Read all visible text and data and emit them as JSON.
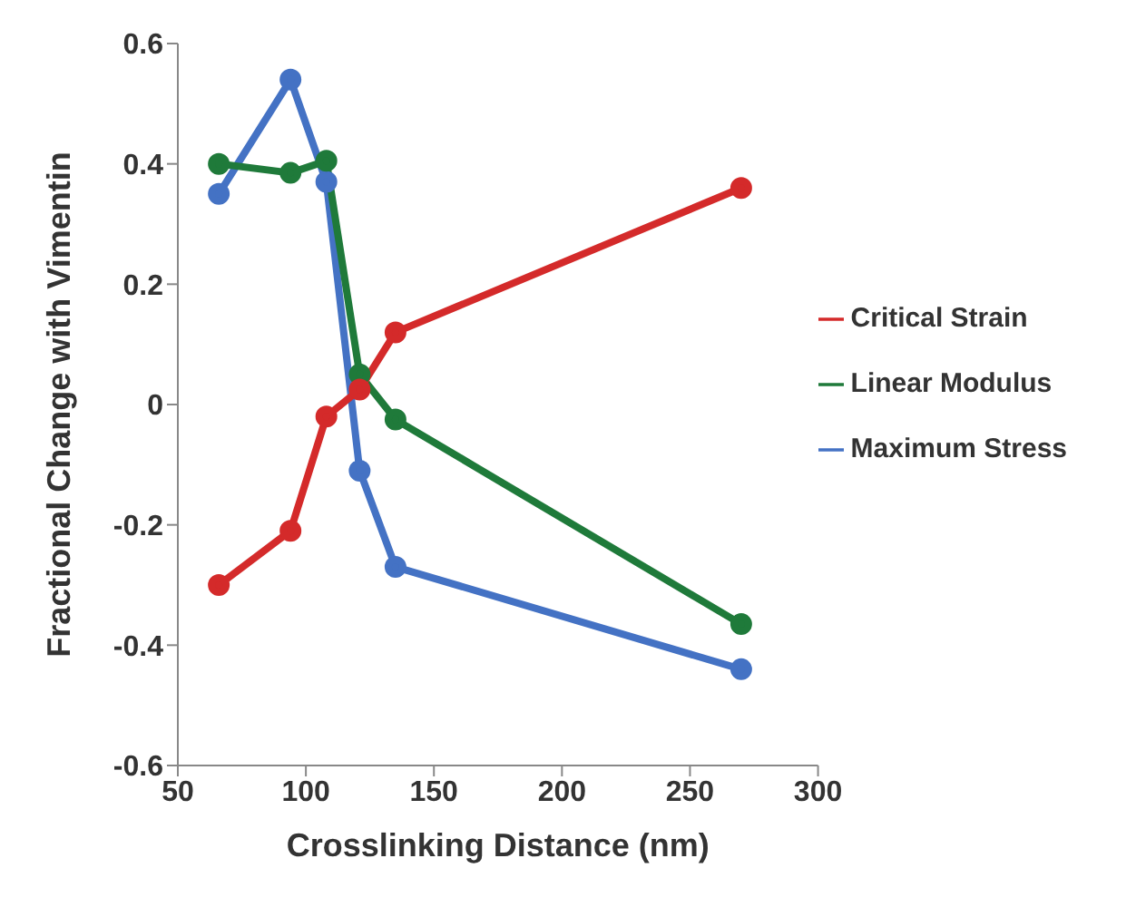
{
  "chart_data": {
    "type": "line",
    "xlabel": "Crosslinking Distance (nm)",
    "ylabel": "Fractional Change with Vimentin",
    "x": [
      66,
      94,
      108,
      121,
      135,
      270
    ],
    "series": [
      {
        "name": "Maximum Stress",
        "color": "#4472c4",
        "values": [
          0.35,
          0.54,
          0.37,
          -0.11,
          -0.27,
          -0.44
        ]
      },
      {
        "name": "Linear Modulus",
        "color": "#1f7a3a",
        "values": [
          0.4,
          0.385,
          0.405,
          0.05,
          -0.025,
          -0.365
        ]
      },
      {
        "name": "Critical Strain",
        "color": "#d42a2a",
        "values": [
          -0.3,
          -0.21,
          -0.02,
          0.025,
          0.12,
          0.36
        ]
      }
    ],
    "xlim": [
      50,
      300
    ],
    "xticks": [
      50,
      100,
      150,
      200,
      250,
      300
    ],
    "ylim": [
      -0.6,
      0.6
    ],
    "yticks": [
      -0.6,
      -0.4,
      -0.2,
      0,
      0.2,
      0.4,
      0.6
    ],
    "grid": false,
    "legend": "right",
    "marker": "circle",
    "line_style": "solid"
  }
}
